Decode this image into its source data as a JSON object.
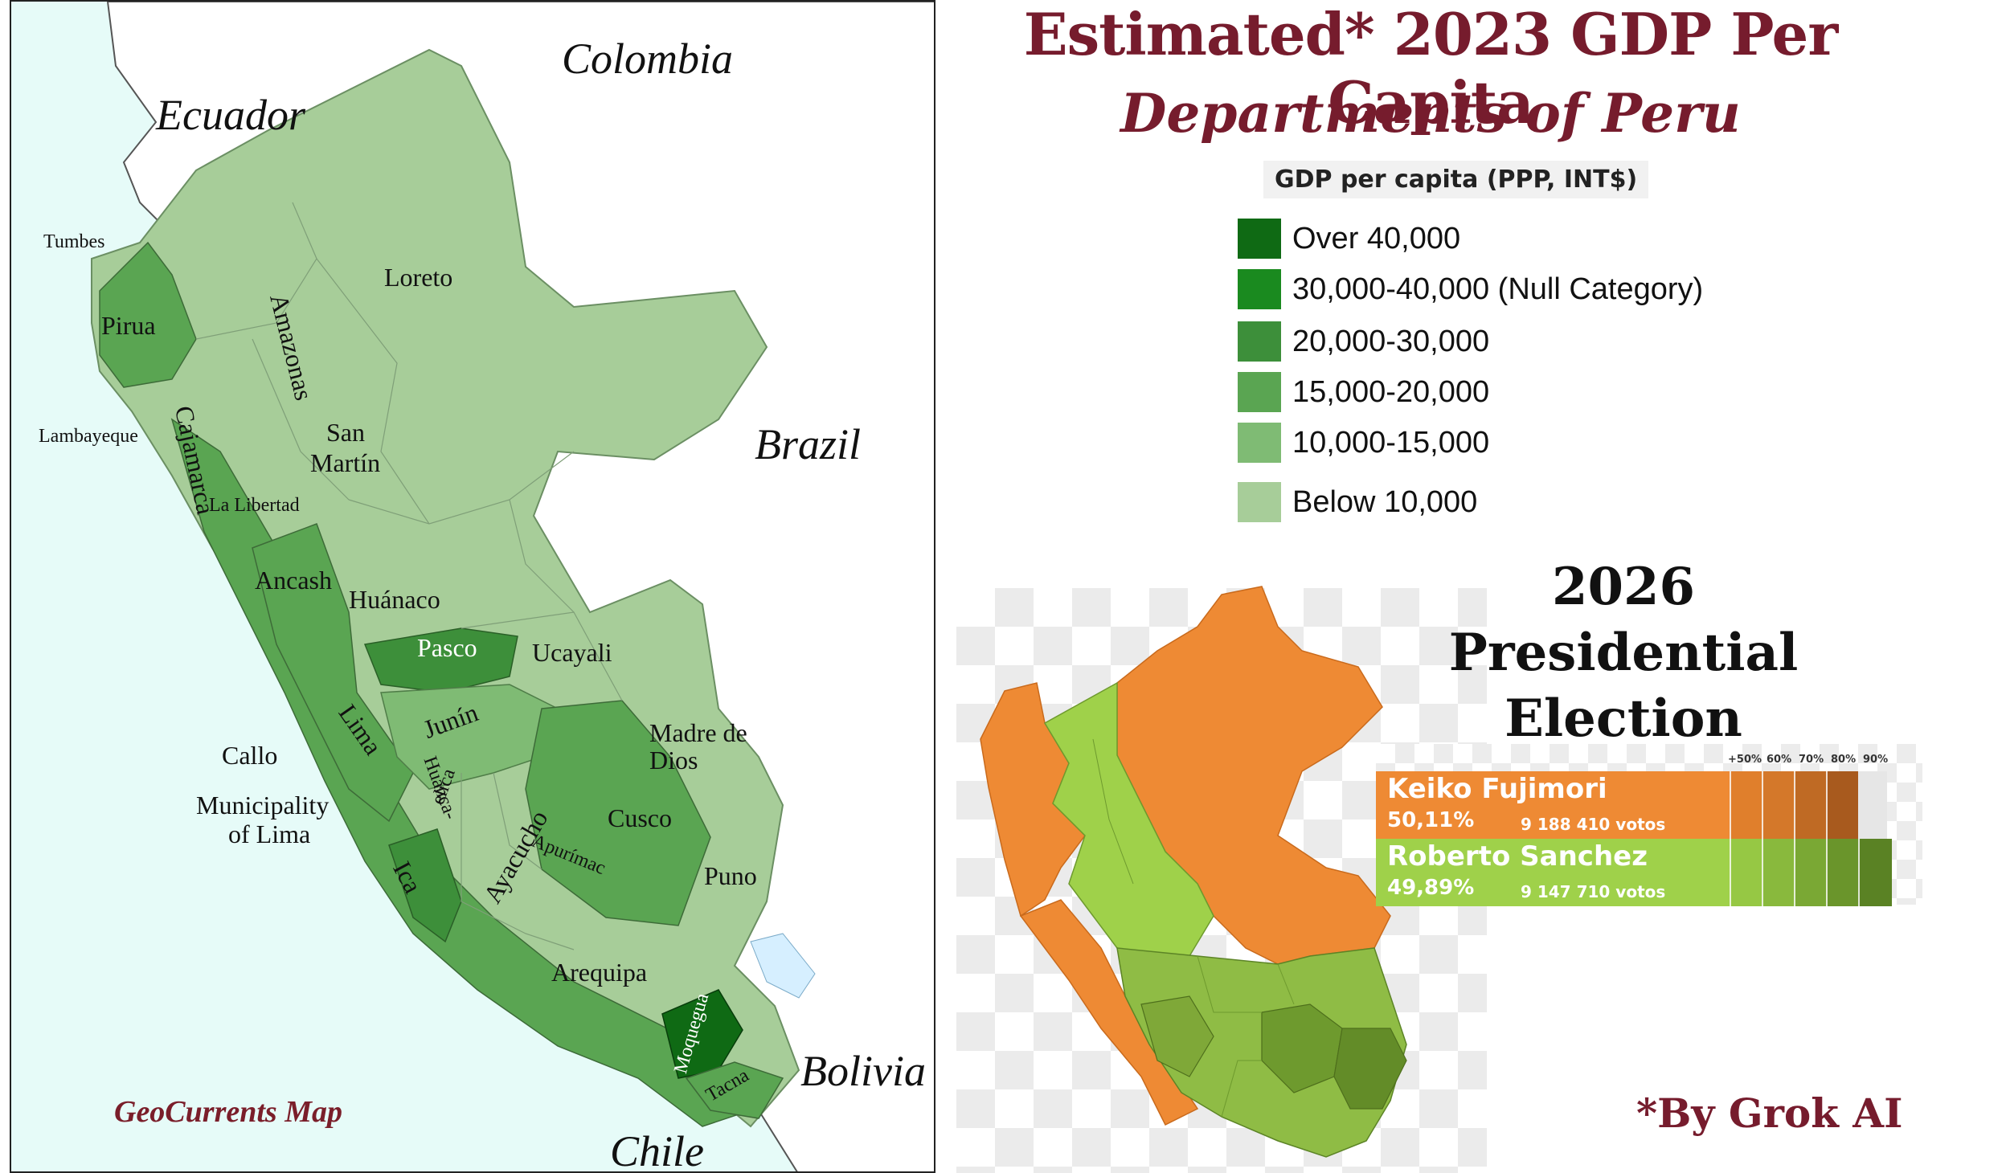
{
  "title": "Estimated* 2023 GDP Per Capita",
  "subtitle": "Departments of Peru",
  "legend": {
    "title": "GDP per capita (PPP, INT$)",
    "items": [
      {
        "label": "Over 40,000",
        "color": "#0f6a14"
      },
      {
        "label": "30,000-40,000 (Null Category)",
        "color": "#1a8a1f"
      },
      {
        "label": "20,000-30,000",
        "color": "#3d8f3a"
      },
      {
        "label": "15,000-20,000",
        "color": "#5aa552"
      },
      {
        "label": "10,000-15,000",
        "color": "#7fbb74"
      },
      {
        "label": "Below 10,000",
        "color": "#a7cd99"
      }
    ]
  },
  "map": {
    "countries": [
      "Ecuador",
      "Colombia",
      "Brazil",
      "Bolivia",
      "Chile"
    ],
    "departments": {
      "tumbes": "Tumbes",
      "piura": "Pirua",
      "lambayeque": "Lambayeque",
      "cajamarca": "Cajamarca",
      "amazonas": "Amazonas",
      "loreto": "Loreto",
      "san_martin_1": "San",
      "san_martin_2": "Martín",
      "la_libertad": "La Libertad",
      "ancash": "Ancash",
      "huanuco": "Huánaco",
      "pasco": "Pasco",
      "ucayali": "Ucayali",
      "junin": "Junín",
      "lima": "Lima",
      "callo": "Callo",
      "municipality_1": "Municipality",
      "municipality_2": "of Lima",
      "madre_1": "Madre de",
      "madre_2": "Dios",
      "huanca_1": "Huanca-",
      "huanca_2": "elica",
      "ayacucho": "Ayacucho",
      "apurimac": "Apurímac",
      "cusco": "Cusco",
      "ica": "Ica",
      "puno": "Puno",
      "arequipa": "Arequipa",
      "moquegua": "Moquegua",
      "tacna": "Tacna"
    },
    "credit": "GeoCurrents Map"
  },
  "election": {
    "title_line1": "2026",
    "title_line2": "Presidential",
    "title_line3": "Election",
    "scale_ticks": [
      "+50%",
      "60%",
      "70%",
      "80%",
      "90%"
    ],
    "candidates": [
      {
        "name": "Keiko Fujimori",
        "percent": "50,11%",
        "votes": "9 188 410 votos",
        "color": "#ee8a34"
      },
      {
        "name": "Roberto Sanchez",
        "percent": "49,89%",
        "votes": "9 147 710 votos",
        "color": "#9fd14a"
      }
    ]
  },
  "footer_credit": "*By Grok AI"
}
